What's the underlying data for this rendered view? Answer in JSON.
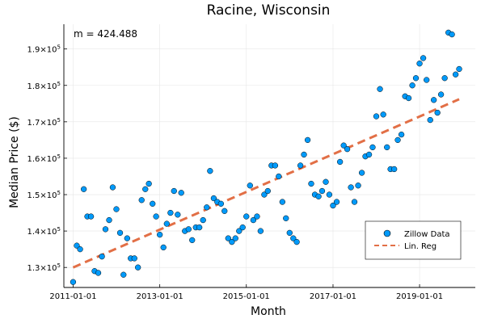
{
  "chart_data": {
    "type": "scatter",
    "title": "Racine, Wisconsin",
    "xlabel": "Month",
    "ylabel": "Median Price ($)",
    "annotation": "m = 424.488",
    "x_ticks": [
      "2011-01-01",
      "2013-01-01",
      "2015-01-01",
      "2017-01-01",
      "2019-01-01"
    ],
    "y_ticks": [
      {
        "value": 130000,
        "mantissa": "1.3",
        "exp": "5"
      },
      {
        "value": 140000,
        "mantissa": "1.4",
        "exp": "5"
      },
      {
        "value": 150000,
        "mantissa": "1.5",
        "exp": "5"
      },
      {
        "value": 160000,
        "mantissa": "1.6",
        "exp": "5"
      },
      {
        "value": 170000,
        "mantissa": "1.7",
        "exp": "5"
      },
      {
        "value": 180000,
        "mantissa": "1.8",
        "exp": "5"
      },
      {
        "value": 190000,
        "mantissa": "1.9",
        "exp": "5"
      }
    ],
    "xlim": [
      "2010-10-15",
      "2020-04-15"
    ],
    "ylim": [
      124500,
      196800
    ],
    "grid": true,
    "legend_position": "bottom-right",
    "series": [
      {
        "name": "Zillow Data",
        "kind": "scatter",
        "color": "#009AFA",
        "x": [
          "2011-01-01",
          "2011-02-01",
          "2011-03-01",
          "2011-04-01",
          "2011-05-01",
          "2011-06-01",
          "2011-07-01",
          "2011-08-01",
          "2011-09-01",
          "2011-10-01",
          "2011-11-01",
          "2011-12-01",
          "2012-01-01",
          "2012-02-01",
          "2012-03-01",
          "2012-04-01",
          "2012-05-01",
          "2012-06-01",
          "2012-07-01",
          "2012-08-01",
          "2012-09-01",
          "2012-10-01",
          "2012-11-01",
          "2012-12-01",
          "2013-01-01",
          "2013-02-01",
          "2013-03-01",
          "2013-04-01",
          "2013-05-01",
          "2013-06-01",
          "2013-07-01",
          "2013-08-01",
          "2013-09-01",
          "2013-10-01",
          "2013-11-01",
          "2013-12-01",
          "2014-01-01",
          "2014-02-01",
          "2014-03-01",
          "2014-04-01",
          "2014-05-01",
          "2014-06-01",
          "2014-07-01",
          "2014-08-01",
          "2014-09-01",
          "2014-10-01",
          "2014-11-01",
          "2014-12-01",
          "2015-01-01",
          "2015-02-01",
          "2015-03-01",
          "2015-04-01",
          "2015-05-01",
          "2015-06-01",
          "2015-07-01",
          "2015-08-01",
          "2015-09-01",
          "2015-10-01",
          "2015-11-01",
          "2015-12-01",
          "2016-01-01",
          "2016-02-01",
          "2016-03-01",
          "2016-04-01",
          "2016-05-01",
          "2016-06-01",
          "2016-07-01",
          "2016-08-01",
          "2016-09-01",
          "2016-10-01",
          "2016-11-01",
          "2016-12-01",
          "2017-01-01",
          "2017-02-01",
          "2017-03-01",
          "2017-04-01",
          "2017-05-01",
          "2017-06-01",
          "2017-07-01",
          "2017-08-01",
          "2017-09-01",
          "2017-10-01",
          "2017-11-01",
          "2017-12-01",
          "2018-01-01",
          "2018-02-01",
          "2018-03-01",
          "2018-04-01",
          "2018-05-01",
          "2018-06-01",
          "2018-07-01",
          "2018-08-01",
          "2018-09-01",
          "2018-10-01",
          "2018-11-01",
          "2018-12-01",
          "2019-01-01",
          "2019-02-01",
          "2019-03-01",
          "2019-04-01",
          "2019-05-01",
          "2019-06-01",
          "2019-07-01",
          "2019-08-01",
          "2019-09-01",
          "2019-10-01",
          "2019-11-01",
          "2019-12-01"
        ],
        "y": [
          126000,
          136000,
          135000,
          151500,
          144000,
          144000,
          129000,
          128500,
          133000,
          140500,
          143000,
          152000,
          146000,
          139500,
          128000,
          138000,
          132500,
          132500,
          130000,
          148500,
          151500,
          153000,
          147500,
          144000,
          139000,
          135500,
          142000,
          145000,
          151000,
          144500,
          150500,
          140000,
          140500,
          137500,
          141000,
          141000,
          143000,
          146500,
          156500,
          149000,
          148000,
          147500,
          145500,
          138000,
          137000,
          138000,
          140000,
          141000,
          144000,
          152500,
          143000,
          144000,
          140000,
          150000,
          151000,
          158000,
          158000,
          155000,
          148000,
          143500,
          139500,
          138000,
          137000,
          158000,
          161000,
          165000,
          153000,
          150000,
          149500,
          151000,
          153500,
          150000,
          147000,
          148000,
          159000,
          163500,
          162500,
          152000,
          148000,
          152500,
          156000,
          160500,
          161000,
          163000,
          171500,
          179000,
          172000,
          163000,
          157000,
          157000,
          165000,
          166500,
          177000,
          176500,
          180000,
          182000,
          186000,
          187500,
          181500,
          170500,
          176000,
          172500,
          177500,
          182000,
          194500,
          194000,
          183000,
          184500
        ],
        "n_points": 108
      },
      {
        "name": "Lin. Reg",
        "kind": "line",
        "style": "dashed",
        "color": "#E26F46",
        "x": [
          "2011-01-01",
          "2019-12-01"
        ],
        "y": [
          130000,
          176200
        ]
      }
    ]
  }
}
